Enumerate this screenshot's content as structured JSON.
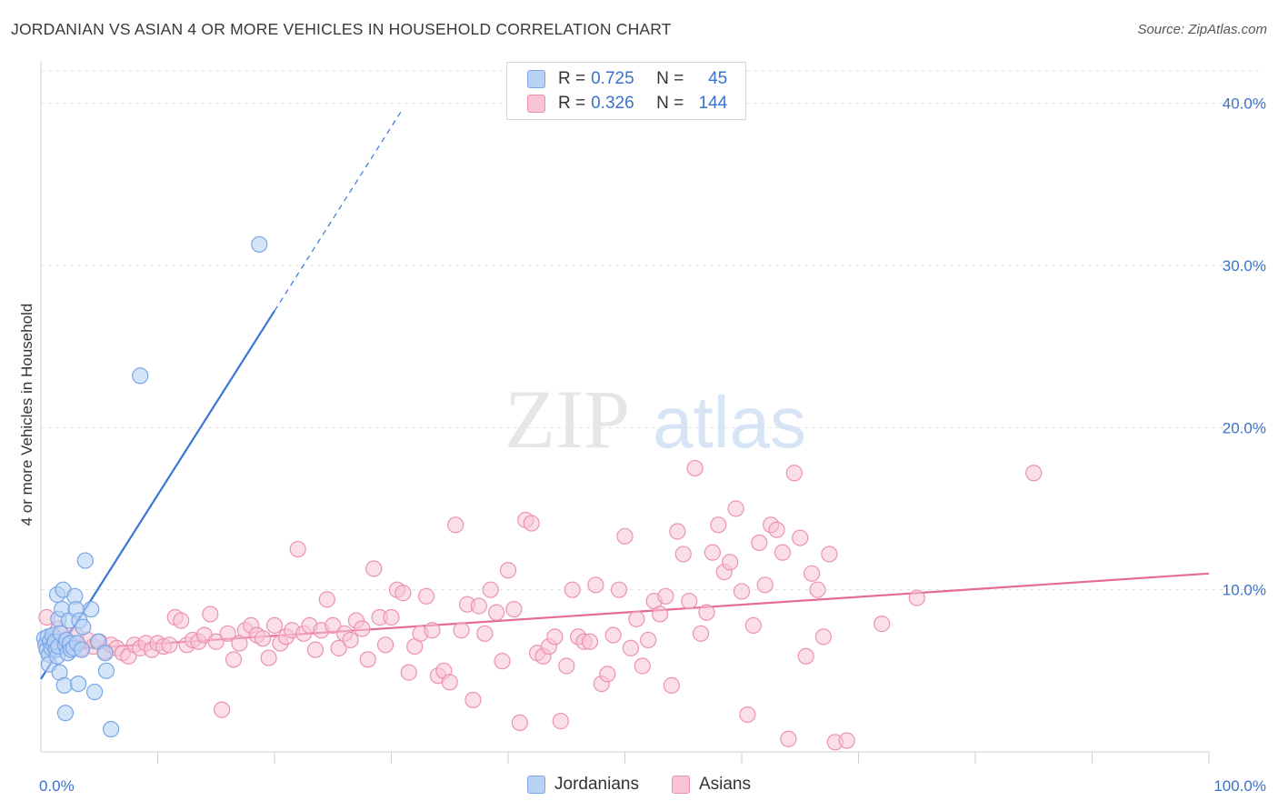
{
  "title": "JORDANIAN VS ASIAN 4 OR MORE VEHICLES IN HOUSEHOLD CORRELATION CHART",
  "source": "Source: ZipAtlas.com",
  "watermark": {
    "zip": "ZIP",
    "atlas": "atlas"
  },
  "legend": {
    "rows": [
      {
        "r_label": "R =",
        "r_value": "0.725",
        "n_label": "N =",
        "n_value": "45"
      },
      {
        "r_label": "R =",
        "r_value": "0.326",
        "n_label": "N =",
        "n_value": "144"
      }
    ]
  },
  "bottom_legend": [
    "Jordanians",
    "Asians"
  ],
  "colors": {
    "jordanians_fill": "#b8d2f5",
    "jordanians_stroke": "#7aa6e6",
    "jordanians_line": "#3a76d4",
    "asians_fill": "#f8c4d3",
    "asians_stroke": "#ec92b0",
    "asians_line": "#e56b97",
    "tick_label": "#3b72c9",
    "grid": "#e3e3e3"
  },
  "chart_data": {
    "type": "scatter",
    "title": "JORDANIAN VS ASIAN 4 OR MORE VEHICLES IN HOUSEHOLD CORRELATION CHART",
    "xlabel": "",
    "ylabel": "4 or more Vehicles in Household",
    "xlim": [
      0,
      100
    ],
    "ylim": [
      0,
      42
    ],
    "x_tick_labels": [
      "0.0%",
      "100.0%"
    ],
    "y_ticks": [
      10,
      20,
      30,
      40
    ],
    "y_tick_labels": [
      "10.0%",
      "20.0%",
      "30.0%",
      "40.0%"
    ],
    "grid": "horizontal dashed",
    "legend_position": "top-center",
    "series": [
      {
        "name": "Jordanians",
        "r": 0.725,
        "n": 45,
        "trend": {
          "x0": 0,
          "y0": 4.5,
          "x1": 20,
          "y1": 27.2,
          "dashed_to_x": 31
        },
        "points": [
          [
            0.3,
            7.0
          ],
          [
            0.4,
            6.6
          ],
          [
            0.5,
            6.3
          ],
          [
            0.6,
            7.1
          ],
          [
            0.7,
            6.0
          ],
          [
            0.7,
            5.4
          ],
          [
            0.8,
            6.8
          ],
          [
            0.9,
            6.4
          ],
          [
            1.0,
            7.2
          ],
          [
            1.1,
            6.6
          ],
          [
            1.2,
            6.8
          ],
          [
            1.3,
            6.3
          ],
          [
            1.4,
            5.9
          ],
          [
            1.4,
            9.7
          ],
          [
            1.5,
            8.2
          ],
          [
            1.5,
            6.5
          ],
          [
            1.6,
            4.9
          ],
          [
            1.7,
            7.3
          ],
          [
            1.8,
            8.8
          ],
          [
            1.9,
            10.0
          ],
          [
            2.0,
            4.1
          ],
          [
            2.1,
            2.4
          ],
          [
            2.1,
            6.6
          ],
          [
            2.2,
            6.9
          ],
          [
            2.3,
            6.1
          ],
          [
            2.4,
            8.1
          ],
          [
            2.5,
            6.7
          ],
          [
            2.6,
            6.3
          ],
          [
            2.8,
            6.4
          ],
          [
            2.9,
            9.6
          ],
          [
            3.0,
            8.8
          ],
          [
            3.1,
            6.7
          ],
          [
            3.2,
            4.2
          ],
          [
            3.3,
            8.1
          ],
          [
            3.5,
            6.3
          ],
          [
            3.6,
            7.7
          ],
          [
            3.8,
            11.8
          ],
          [
            4.3,
            8.8
          ],
          [
            4.6,
            3.7
          ],
          [
            4.9,
            6.8
          ],
          [
            5.5,
            6.1
          ],
          [
            5.6,
            5.0
          ],
          [
            6.0,
            1.4
          ],
          [
            8.5,
            23.2
          ],
          [
            18.7,
            31.3
          ]
        ]
      },
      {
        "name": "Asians",
        "r": 0.326,
        "n": 144,
        "trend": {
          "x0": 0,
          "y0": 6.2,
          "x1": 100,
          "y1": 11.0
        },
        "points": [
          [
            0.5,
            8.3
          ],
          [
            1.0,
            7.0
          ],
          [
            1.5,
            7.6
          ],
          [
            2.0,
            6.8
          ],
          [
            2.5,
            6.5
          ],
          [
            3.0,
            7.2
          ],
          [
            3.5,
            6.4
          ],
          [
            4.0,
            6.9
          ],
          [
            4.5,
            6.5
          ],
          [
            5.0,
            6.8
          ],
          [
            5.5,
            6.2
          ],
          [
            6.0,
            6.6
          ],
          [
            6.5,
            6.4
          ],
          [
            7.0,
            6.1
          ],
          [
            7.5,
            5.9
          ],
          [
            8.0,
            6.6
          ],
          [
            8.5,
            6.4
          ],
          [
            9.0,
            6.7
          ],
          [
            9.5,
            6.3
          ],
          [
            10.0,
            6.7
          ],
          [
            10.5,
            6.5
          ],
          [
            11.0,
            6.6
          ],
          [
            11.5,
            8.3
          ],
          [
            12.0,
            8.1
          ],
          [
            12.5,
            6.6
          ],
          [
            13.0,
            6.9
          ],
          [
            13.5,
            6.8
          ],
          [
            14.0,
            7.2
          ],
          [
            14.5,
            8.5
          ],
          [
            15.0,
            6.8
          ],
          [
            15.5,
            2.6
          ],
          [
            16.0,
            7.3
          ],
          [
            16.5,
            5.7
          ],
          [
            17.0,
            6.7
          ],
          [
            17.5,
            7.5
          ],
          [
            18.0,
            7.8
          ],
          [
            18.5,
            7.2
          ],
          [
            19.0,
            7.0
          ],
          [
            19.5,
            5.8
          ],
          [
            20.0,
            7.8
          ],
          [
            20.5,
            6.7
          ],
          [
            21.0,
            7.1
          ],
          [
            21.5,
            7.5
          ],
          [
            22.0,
            12.5
          ],
          [
            22.5,
            7.3
          ],
          [
            23.0,
            7.8
          ],
          [
            23.5,
            6.3
          ],
          [
            24.0,
            7.5
          ],
          [
            24.5,
            9.4
          ],
          [
            25.0,
            7.8
          ],
          [
            25.5,
            6.4
          ],
          [
            26.0,
            7.3
          ],
          [
            26.5,
            6.9
          ],
          [
            27.0,
            8.1
          ],
          [
            27.5,
            7.6
          ],
          [
            28.0,
            5.7
          ],
          [
            28.5,
            11.3
          ],
          [
            29.0,
            8.3
          ],
          [
            29.5,
            6.6
          ],
          [
            30.0,
            8.3
          ],
          [
            30.5,
            10.0
          ],
          [
            31.0,
            9.8
          ],
          [
            31.5,
            4.9
          ],
          [
            32.0,
            6.5
          ],
          [
            32.5,
            7.3
          ],
          [
            33.0,
            9.6
          ],
          [
            33.5,
            7.5
          ],
          [
            34.0,
            4.7
          ],
          [
            34.5,
            5.0
          ],
          [
            35.0,
            4.3
          ],
          [
            35.5,
            14.0
          ],
          [
            36.0,
            7.5
          ],
          [
            36.5,
            9.1
          ],
          [
            37.0,
            3.2
          ],
          [
            37.5,
            9.0
          ],
          [
            38.0,
            7.3
          ],
          [
            38.5,
            10.0
          ],
          [
            39.0,
            8.6
          ],
          [
            39.5,
            5.6
          ],
          [
            40.0,
            11.2
          ],
          [
            40.5,
            8.8
          ],
          [
            41.0,
            1.8
          ],
          [
            41.5,
            14.3
          ],
          [
            42.0,
            14.1
          ],
          [
            42.5,
            6.1
          ],
          [
            43.0,
            5.9
          ],
          [
            43.5,
            6.5
          ],
          [
            44.0,
            7.1
          ],
          [
            44.5,
            1.9
          ],
          [
            45.0,
            5.3
          ],
          [
            45.5,
            10.0
          ],
          [
            46.0,
            7.1
          ],
          [
            46.5,
            6.8
          ],
          [
            47.0,
            6.8
          ],
          [
            47.5,
            10.3
          ],
          [
            48.0,
            4.2
          ],
          [
            48.5,
            4.8
          ],
          [
            49.0,
            7.2
          ],
          [
            49.5,
            10.0
          ],
          [
            50.0,
            13.3
          ],
          [
            50.5,
            6.4
          ],
          [
            51.0,
            8.2
          ],
          [
            51.5,
            5.3
          ],
          [
            52.0,
            6.9
          ],
          [
            52.5,
            9.3
          ],
          [
            53.0,
            8.5
          ],
          [
            53.5,
            9.6
          ],
          [
            54.0,
            4.1
          ],
          [
            54.5,
            13.6
          ],
          [
            55.0,
            12.2
          ],
          [
            55.5,
            9.3
          ],
          [
            56.0,
            17.5
          ],
          [
            56.5,
            7.3
          ],
          [
            57.0,
            8.6
          ],
          [
            57.5,
            12.3
          ],
          [
            58.0,
            14.0
          ],
          [
            58.5,
            11.1
          ],
          [
            59.0,
            11.7
          ],
          [
            59.5,
            15.0
          ],
          [
            60.0,
            9.9
          ],
          [
            60.5,
            2.3
          ],
          [
            61.0,
            7.8
          ],
          [
            61.5,
            12.9
          ],
          [
            62.0,
            10.3
          ],
          [
            62.5,
            14.0
          ],
          [
            63.0,
            13.7
          ],
          [
            63.5,
            12.3
          ],
          [
            64.0,
            0.8
          ],
          [
            64.5,
            17.2
          ],
          [
            65.0,
            13.2
          ],
          [
            65.5,
            5.9
          ],
          [
            66.0,
            11.0
          ],
          [
            66.5,
            10.0
          ],
          [
            67.0,
            7.1
          ],
          [
            67.5,
            12.2
          ],
          [
            68.0,
            0.6
          ],
          [
            69.0,
            0.7
          ],
          [
            72.0,
            7.9
          ],
          [
            75.0,
            9.5
          ],
          [
            85.0,
            17.2
          ]
        ]
      }
    ]
  }
}
